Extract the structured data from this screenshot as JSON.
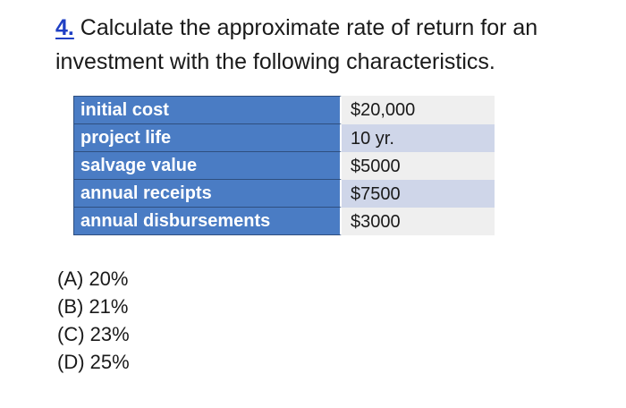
{
  "question": {
    "number": "4.",
    "text": " Calculate the approximate rate of return for an investment with the following characteristics."
  },
  "table": {
    "rows": [
      {
        "label": "initial cost",
        "value": "$20,000"
      },
      {
        "label": "project life",
        "value": "10 yr."
      },
      {
        "label": "salvage value",
        "value": "$5000"
      },
      {
        "label": "annual receipts",
        "value": "$7500"
      },
      {
        "label": "annual disbursements",
        "value": "$3000"
      }
    ]
  },
  "options": [
    "(A) 20%",
    "(B) 21%",
    "(C) 23%",
    "(D) 25%"
  ],
  "colors": {
    "question_number": "#1f3fc4",
    "label_cell": "#4a7cc4",
    "value_cell_light": "#efefef",
    "value_cell_dark": "#cfd6e9"
  }
}
